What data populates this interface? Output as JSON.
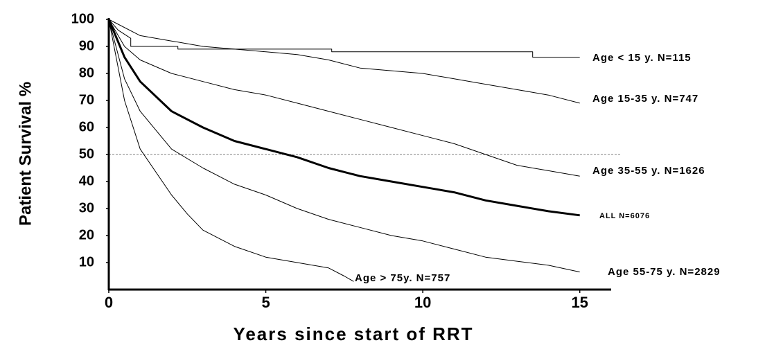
{
  "chart_data": {
    "type": "line",
    "xlabel": "Years since start of RRT",
    "ylabel": "Patient Survival %",
    "xlim": [
      0,
      16
    ],
    "ylim": [
      0,
      100
    ],
    "xticks": [
      0,
      5,
      10,
      15
    ],
    "yticks": [
      10,
      20,
      30,
      40,
      50,
      60,
      70,
      80,
      90,
      100
    ],
    "grid": false,
    "reference_line": 50,
    "series": [
      {
        "name": "Age < 15 y. N=115",
        "color": "#000000",
        "width": 1,
        "x": [
          0,
          0.3,
          0.7,
          0.7,
          2.2,
          2.2,
          7.1,
          7.1,
          13.5,
          13.5,
          15
        ],
        "values": [
          100,
          96,
          93,
          90,
          90,
          89,
          89,
          88,
          88,
          86,
          86
        ]
      },
      {
        "name": "Age 15-35 y. N=747",
        "color": "#000000",
        "width": 1,
        "x": [
          0,
          1,
          2,
          3,
          4,
          5,
          6,
          7,
          8,
          9,
          10,
          11,
          12,
          13,
          14,
          15
        ],
        "values": [
          100,
          94,
          92,
          90,
          89,
          88,
          87,
          85,
          82,
          81,
          80,
          78,
          76,
          74,
          72,
          69
        ]
      },
      {
        "name": "Age 35-55 y. N=1626",
        "color": "#000000",
        "width": 1,
        "x": [
          0,
          0.5,
          1,
          2,
          3,
          4,
          5,
          6,
          7,
          8,
          9,
          10,
          11,
          12,
          13,
          14,
          15
        ],
        "values": [
          100,
          90,
          85,
          80,
          77,
          74,
          72,
          69,
          66,
          63,
          60,
          57,
          54,
          50,
          46,
          44,
          42
        ]
      },
      {
        "name": "ALL   N=6076",
        "color": "#000000",
        "width": 3,
        "x": [
          0,
          0.5,
          1,
          2,
          3,
          4,
          5,
          6,
          7,
          8,
          9,
          10,
          11,
          12,
          13,
          14,
          15
        ],
        "values": [
          100,
          86,
          77,
          66,
          60,
          55,
          52,
          49,
          45,
          42,
          40,
          38,
          36,
          33,
          31,
          29,
          27.5
        ]
      },
      {
        "name": "Age 55-75 y. N=2829",
        "color": "#000000",
        "width": 1,
        "x": [
          0,
          0.5,
          1,
          2,
          3,
          4,
          5,
          6,
          7,
          8,
          9,
          10,
          11,
          12,
          13,
          14,
          15
        ],
        "values": [
          100,
          78,
          66,
          52,
          45,
          39,
          35,
          30,
          26,
          23,
          20,
          18,
          15,
          12,
          10.5,
          9,
          6.5
        ]
      },
      {
        "name": "Age > 75y. N=757",
        "color": "#000000",
        "width": 1,
        "x": [
          0,
          0.5,
          1,
          2,
          2.5,
          3,
          4,
          5,
          6,
          7,
          7.5,
          7.8
        ],
        "values": [
          100,
          70,
          52,
          35,
          28,
          22,
          16,
          12,
          10,
          8,
          5,
          3
        ]
      }
    ]
  }
}
